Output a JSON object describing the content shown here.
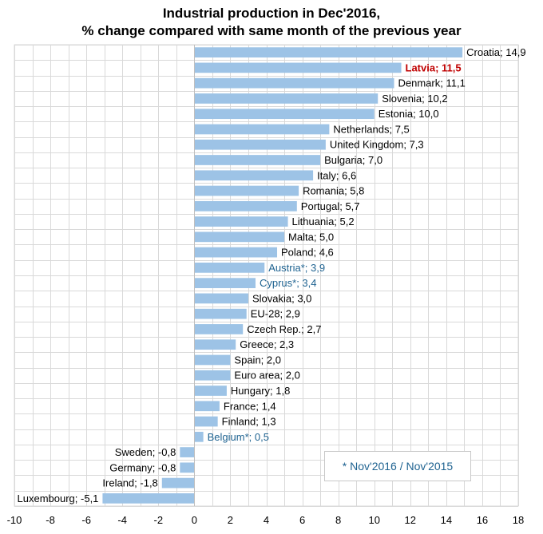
{
  "chart_data": {
    "type": "bar",
    "orientation": "horizontal",
    "title_lines": [
      "Industrial production in Dec'2016,",
      "% change compared with same month of the previous year"
    ],
    "xlim": [
      -10,
      18
    ],
    "x_ticks": [
      -10,
      -8,
      -6,
      -4,
      -2,
      0,
      2,
      4,
      6,
      8,
      10,
      12,
      14,
      16,
      18
    ],
    "grid": true,
    "bar_color": "#9dc3e6",
    "colors": {
      "default": "#000000",
      "highlight": "#c00000",
      "note": "#1f6391"
    },
    "bars": [
      {
        "label": "Croatia",
        "value": 14.9,
        "text": "Croatia; 14,9",
        "style": "default"
      },
      {
        "label": "Latvia",
        "value": 11.5,
        "text": "Latvia; 11,5",
        "style": "highlight"
      },
      {
        "label": "Denmark",
        "value": 11.1,
        "text": "Denmark; 11,1",
        "style": "default"
      },
      {
        "label": "Slovenia",
        "value": 10.2,
        "text": "Slovenia; 10,2",
        "style": "default"
      },
      {
        "label": "Estonia",
        "value": 10.0,
        "text": "Estonia; 10,0",
        "style": "default"
      },
      {
        "label": "Netherlands",
        "value": 7.5,
        "text": "Netherlands; 7,5",
        "style": "default"
      },
      {
        "label": "United Kingdom",
        "value": 7.3,
        "text": "United Kingdom; 7,3",
        "style": "default"
      },
      {
        "label": "Bulgaria",
        "value": 7.0,
        "text": "Bulgaria; 7,0",
        "style": "default"
      },
      {
        "label": "Italy",
        "value": 6.6,
        "text": "Italy; 6,6",
        "style": "default"
      },
      {
        "label": "Romania",
        "value": 5.8,
        "text": "Romania; 5,8",
        "style": "default"
      },
      {
        "label": "Portugal",
        "value": 5.7,
        "text": "Portugal; 5,7",
        "style": "default"
      },
      {
        "label": "Lithuania",
        "value": 5.2,
        "text": "Lithuania; 5,2",
        "style": "default"
      },
      {
        "label": "Malta",
        "value": 5.0,
        "text": "Malta; 5,0",
        "style": "default"
      },
      {
        "label": "Poland",
        "value": 4.6,
        "text": "Poland; 4,6",
        "style": "default"
      },
      {
        "label": "Austria*",
        "value": 3.9,
        "text": "Austria*; 3,9",
        "style": "note"
      },
      {
        "label": "Cyprus*",
        "value": 3.4,
        "text": "Cyprus*; 3,4",
        "style": "note"
      },
      {
        "label": "Slovakia",
        "value": 3.0,
        "text": "Slovakia; 3,0",
        "style": "default"
      },
      {
        "label": "EU-28",
        "value": 2.9,
        "text": "EU-28; 2,9",
        "style": "default"
      },
      {
        "label": "Czech Rep.",
        "value": 2.7,
        "text": "Czech Rep.; 2,7",
        "style": "default"
      },
      {
        "label": "Greece",
        "value": 2.3,
        "text": "Greece; 2,3",
        "style": "default"
      },
      {
        "label": "Spain",
        "value": 2.0,
        "text": "Spain; 2,0",
        "style": "default"
      },
      {
        "label": "Euro area",
        "value": 2.0,
        "text": "Euro area; 2,0",
        "style": "default"
      },
      {
        "label": "Hungary",
        "value": 1.8,
        "text": "Hungary; 1,8",
        "style": "default"
      },
      {
        "label": "France",
        "value": 1.4,
        "text": "France; 1,4",
        "style": "default"
      },
      {
        "label": "Finland",
        "value": 1.3,
        "text": "Finland; 1,3",
        "style": "default"
      },
      {
        "label": "Belgium*",
        "value": 0.5,
        "text": "Belgium*; 0,5",
        "style": "note"
      },
      {
        "label": "Sweden",
        "value": -0.8,
        "text": "Sweden; -0,8",
        "style": "default"
      },
      {
        "label": "Germany",
        "value": -0.8,
        "text": "Germany; -0,8",
        "style": "default"
      },
      {
        "label": "Ireland",
        "value": -1.8,
        "text": "Ireland; -1,8",
        "style": "default"
      },
      {
        "label": "Luxembourg",
        "value": -5.1,
        "text": "Luxembourg; -5,1",
        "style": "default"
      }
    ],
    "annotation": "* Nov'2016 / Nov'2015"
  }
}
